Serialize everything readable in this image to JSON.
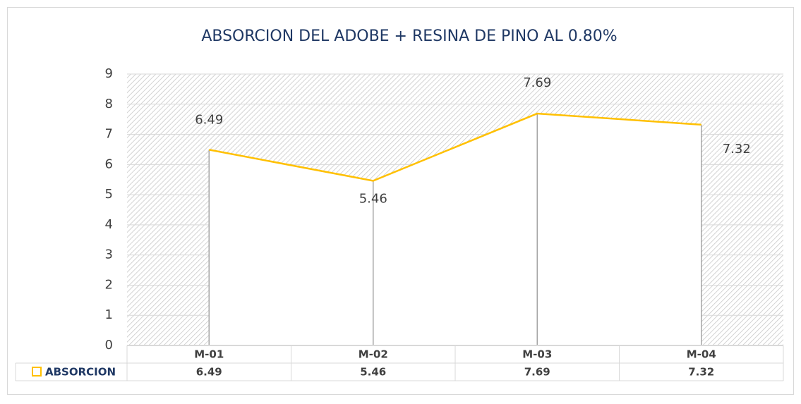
{
  "chart_data": {
    "type": "line",
    "title": "ABSORCION DEL ADOBE + RESINA DE PINO AL 0.80%",
    "categories": [
      "M-01",
      "M-02",
      "M-03",
      "M-04"
    ],
    "series": [
      {
        "name": "ABSORCION",
        "color": "#ffc000",
        "values": [
          6.49,
          5.46,
          7.69,
          7.32
        ]
      }
    ],
    "ylim": [
      0,
      9
    ],
    "yticks": [
      0,
      1,
      2,
      3,
      4,
      5,
      6,
      7,
      8,
      9
    ],
    "grid": true,
    "drop_lines": true,
    "data_table": true
  }
}
